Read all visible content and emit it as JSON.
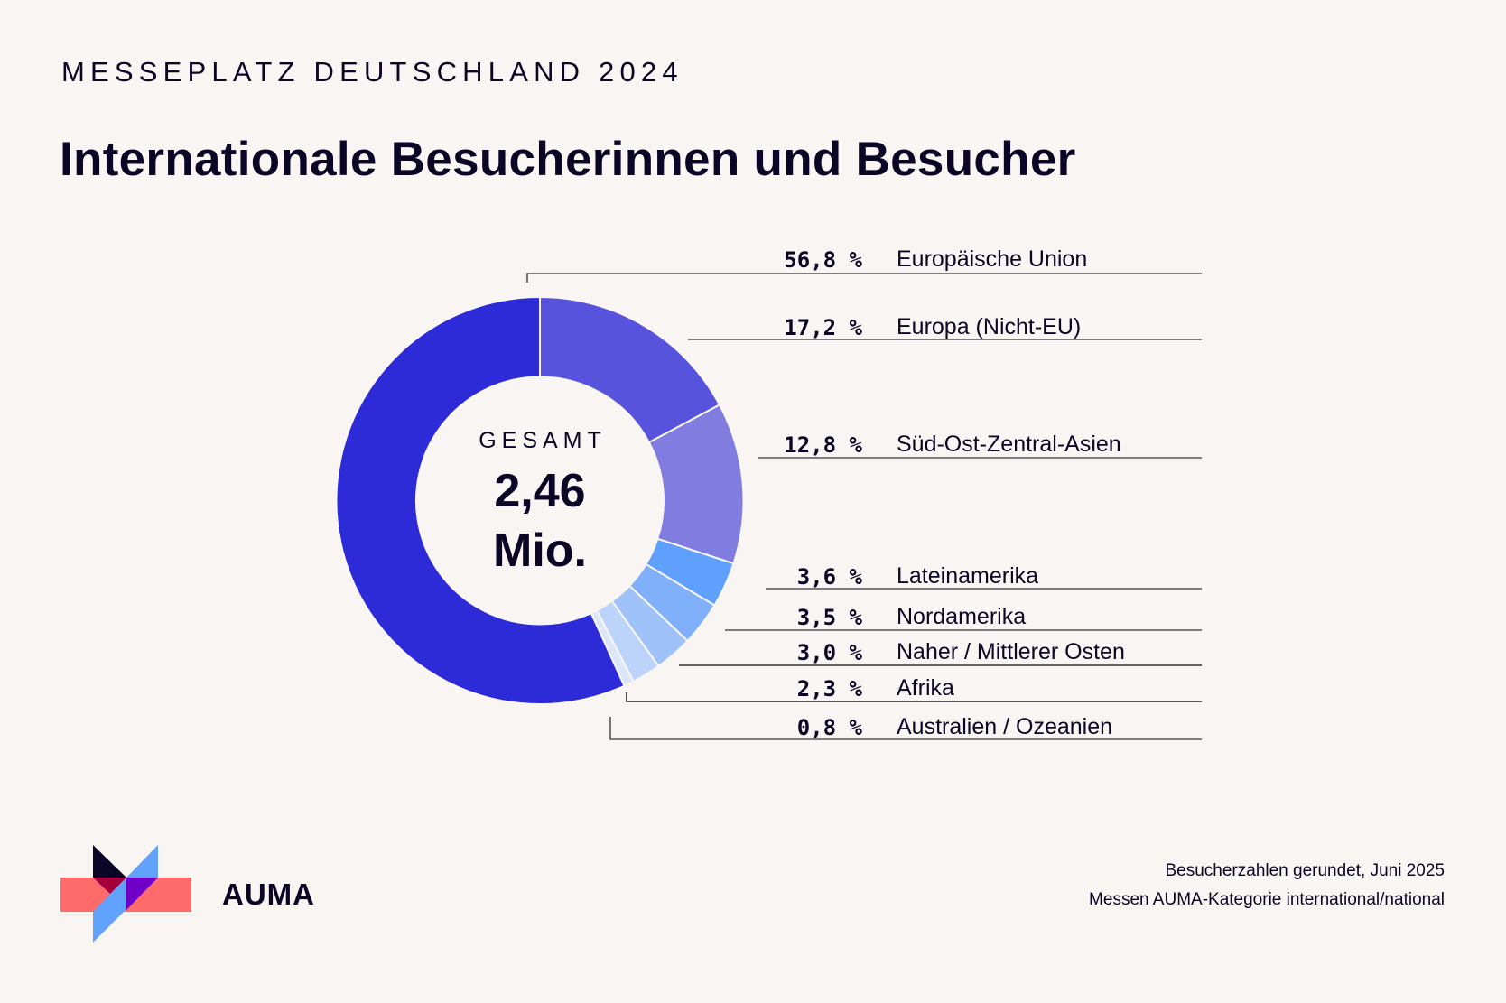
{
  "header": {
    "kicker": "MESSEPLATZ DEUTSCHLAND 2024",
    "title": "Internationale Besucherinnen und Besucher"
  },
  "center": {
    "label": "GESAMT",
    "value": "2,46",
    "unit": "Mio."
  },
  "chart_data": {
    "type": "pie",
    "variant": "donut",
    "title": "Internationale Besucherinnen und Besucher",
    "total_label": "GESAMT 2,46 Mio.",
    "unit": "%",
    "start": "12 o'clock, clockwise",
    "slices": [
      {
        "name": "Europa (Nicht-EU)",
        "value": 17.2,
        "label": "17,2 %",
        "color": "#5853dc"
      },
      {
        "name": "Süd-Ost-Zentral-Asien",
        "value": 12.8,
        "label": "12,8 %",
        "color": "#817ce0"
      },
      {
        "name": "Lateinamerika",
        "value": 3.6,
        "label": "3,6 %",
        "color": "#5fa0ff"
      },
      {
        "name": "Nordamerika",
        "value": 3.5,
        "label": "3,5 %",
        "color": "#80b0fa"
      },
      {
        "name": "Naher / Mittlerer Osten",
        "value": 3.0,
        "label": "3,0 %",
        "color": "#9fc2f8"
      },
      {
        "name": "Afrika",
        "value": 2.3,
        "label": "2,3 %",
        "color": "#bcd4f9"
      },
      {
        "name": "Australien / Ozeanien",
        "value": 0.8,
        "label": "0,8 %",
        "color": "#dbe6f8"
      },
      {
        "name": "Europäische Union",
        "value": 56.8,
        "label": "56,8 %",
        "color": "#2d2bd8"
      }
    ],
    "legend": [
      {
        "pct": "56,8 %",
        "name": "Europäische Union"
      },
      {
        "pct": "17,2 %",
        "name": "Europa (Nicht-EU)"
      },
      {
        "pct": "12,8 %",
        "name": "Süd-Ost-Zentral-Asien"
      },
      {
        "pct": "3,6 %",
        "name": "Lateinamerika"
      },
      {
        "pct": "3,5 %",
        "name": "Nordamerika"
      },
      {
        "pct": "3,0 %",
        "name": "Naher / Mittlerer Osten"
      },
      {
        "pct": "2,3 %",
        "name": "Afrika"
      },
      {
        "pct": "0,8 %",
        "name": "Australien / Ozeanien"
      }
    ]
  },
  "brand": {
    "name": "AUMA",
    "colors": {
      "red": "#ff6b6b",
      "dark": "#0b0626",
      "blue": "#62a2ff",
      "crimson": "#a5003c",
      "purple": "#7000c8"
    }
  },
  "footer": {
    "line1": "Besucherzahlen gerundet, Juni 2025",
    "line2": "Messen AUMA-Kategorie international/national"
  }
}
